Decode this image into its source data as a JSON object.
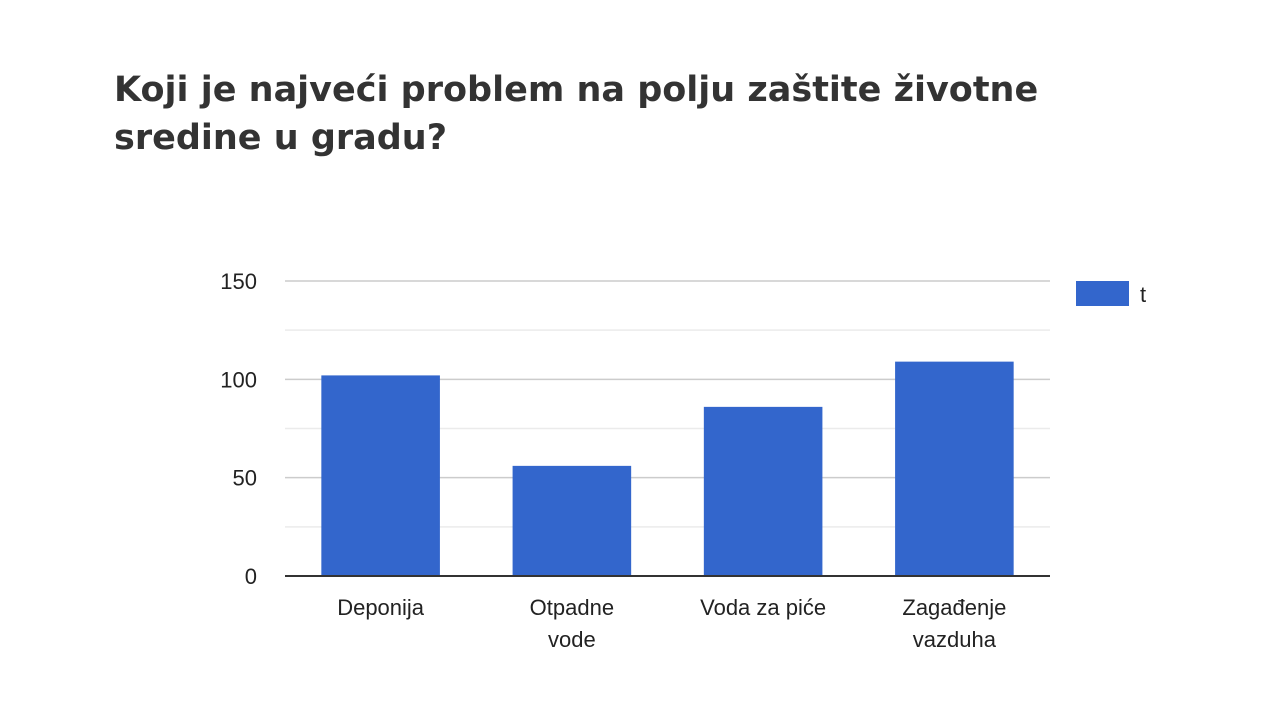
{
  "title": {
    "line1": "Koji je najveći problem na polju zaštite životne",
    "line2": "sredine u gradu?"
  },
  "chart_data": {
    "type": "bar",
    "categories": [
      [
        "Deponija"
      ],
      [
        "Otpadne",
        "vode"
      ],
      [
        "Voda za piće"
      ],
      [
        "Zagađenje",
        "vazduha"
      ]
    ],
    "series": [
      {
        "name": "t",
        "color": "#3366cc",
        "values": [
          102,
          56,
          86,
          109
        ]
      }
    ],
    "ylim": [
      0,
      150
    ],
    "yticks": [
      0,
      50,
      100,
      150
    ],
    "grid": true,
    "minor_grid": true,
    "legend": "right"
  }
}
